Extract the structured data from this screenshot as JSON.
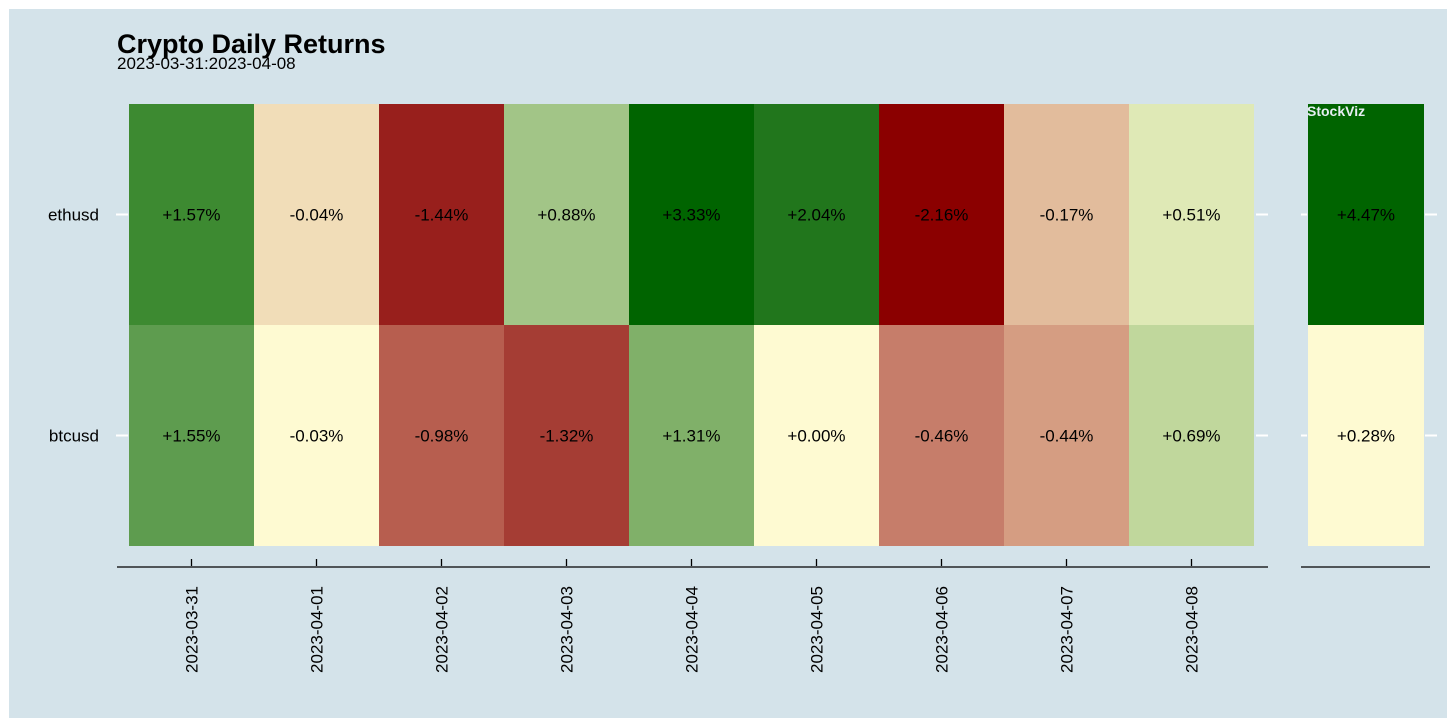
{
  "chart_data": {
    "type": "heatmap",
    "title": "Crypto Daily Returns",
    "subtitle": "2023-03-31:2023-04-08",
    "watermark": "StockViz",
    "rows": [
      "ethusd",
      "btcusd"
    ],
    "columns": [
      "2023-03-31",
      "2023-04-01",
      "2023-04-02",
      "2023-04-03",
      "2023-04-04",
      "2023-04-05",
      "2023-04-06",
      "2023-04-07",
      "2023-04-08"
    ],
    "values": [
      [
        1.57,
        -0.04,
        -1.44,
        0.88,
        3.33,
        2.04,
        -2.16,
        -0.17,
        0.51
      ],
      [
        1.55,
        -0.03,
        -0.98,
        -1.32,
        1.31,
        0.0,
        -0.46,
        -0.44,
        0.69
      ]
    ],
    "labels": [
      [
        "+1.57%",
        "-0.04%",
        "-1.44%",
        "+0.88%",
        "+3.33%",
        "+2.04%",
        "-2.16%",
        "-0.17%",
        "+0.51%"
      ],
      [
        "+1.55%",
        "-0.03%",
        "-0.98%",
        "-1.32%",
        "+1.31%",
        "+0.00%",
        "-0.46%",
        "-0.44%",
        "+0.69%"
      ]
    ],
    "cell_colors": [
      [
        "#3d8a31",
        "#f1ddb8",
        "#981f1c",
        "#a2c587",
        "#006400",
        "#21761c",
        "#8b0000",
        "#e2bc9c",
        "#dfe9b6"
      ],
      [
        "#5e9c4f",
        "#fefad2",
        "#b75e4f",
        "#a53d34",
        "#80b069",
        "#fefad2",
        "#c67d6a",
        "#d59d82",
        "#c0d79c"
      ]
    ],
    "total_panel": {
      "values": [
        4.47,
        0.28
      ],
      "labels": [
        "+4.47%",
        "+0.28%"
      ],
      "cell_colors": [
        "#006400",
        "#fefad2"
      ]
    },
    "background": "#d4e3ea"
  }
}
